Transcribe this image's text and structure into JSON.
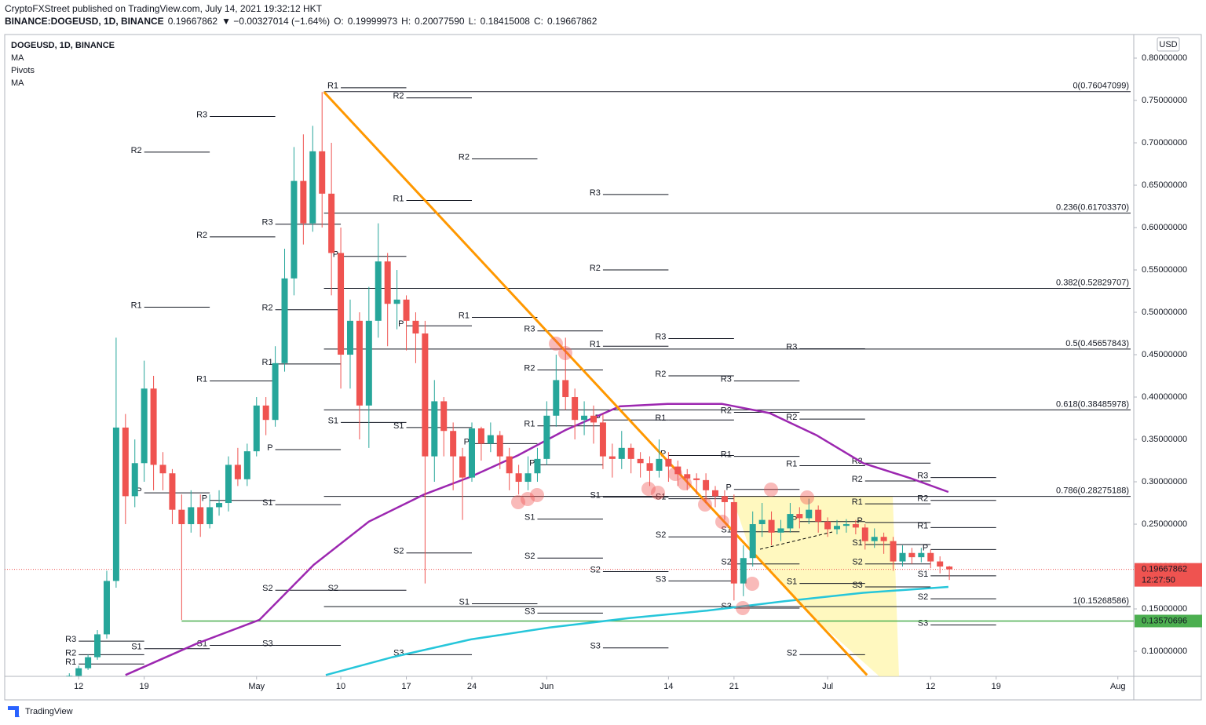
{
  "header": {
    "publisher": "CryptoFXStreet published on TradingView.com, July 14, 2021 19:32:12 HKT",
    "symbol": "BINANCE:DOGEUSD, 1D, BINANCE",
    "last": "0.19667862",
    "change": "▼ −0.00327014 (−1.64%)",
    "ohlc": [
      {
        "label": "O:",
        "value": "0.19999973"
      },
      {
        "label": "H:",
        "value": "0.20077590"
      },
      {
        "label": "L:",
        "value": "0.18415008"
      },
      {
        "label": "C:",
        "value": "0.19667862"
      }
    ]
  },
  "footer": "TradingView",
  "chart_data": {
    "type": "candlestick",
    "title": "DOGEUSD, 1D, BINANCE",
    "currency": "USD",
    "up_color": "#26a69a",
    "down_color": "#ef5350",
    "open": [
      0.068,
      0.071,
      0.08,
      0.093,
      0.12,
      0.183,
      0.364,
      0.283,
      0.322,
      0.41,
      0.32,
      0.31,
      0.267,
      0.25,
      0.27,
      0.25,
      0.27,
      0.275,
      0.32,
      0.303,
      0.336,
      0.39,
      0.373,
      0.44,
      0.54,
      0.655,
      0.605,
      0.69,
      0.64,
      0.57,
      0.45,
      0.49,
      0.39,
      0.49,
      0.56,
      0.51,
      0.515,
      0.49,
      0.475,
      0.33,
      0.395,
      0.36,
      0.33,
      0.305,
      0.363,
      0.345,
      0.355,
      0.33,
      0.31,
      0.3,
      0.31,
      0.327,
      0.378,
      0.42,
      0.4,
      0.373,
      0.378,
      0.37,
      0.33,
      0.327,
      0.34,
      0.327,
      0.322,
      0.313,
      0.327,
      0.318,
      0.309,
      0.304,
      0.302,
      0.29,
      0.283,
      0.276,
      0.18,
      0.21,
      0.25,
      0.255,
      0.24,
      0.245,
      0.262,
      0.257,
      0.267,
      0.253,
      0.244,
      0.248,
      0.25,
      0.246,
      0.23,
      0.235,
      0.23,
      0.206,
      0.216,
      0.211,
      0.216,
      0.206,
      0.19999973
    ],
    "high": [
      0.074,
      0.083,
      0.096,
      0.125,
      0.195,
      0.47,
      0.38,
      0.35,
      0.443,
      0.425,
      0.335,
      0.315,
      0.285,
      0.29,
      0.285,
      0.285,
      0.29,
      0.33,
      0.34,
      0.345,
      0.4,
      0.4,
      0.46,
      0.575,
      0.695,
      0.71,
      0.72,
      0.76,
      0.7,
      0.6,
      0.515,
      0.5,
      0.53,
      0.605,
      0.57,
      0.55,
      0.52,
      0.5,
      0.49,
      0.42,
      0.4,
      0.37,
      0.34,
      0.37,
      0.365,
      0.37,
      0.36,
      0.34,
      0.32,
      0.33,
      0.34,
      0.395,
      0.45,
      0.47,
      0.41,
      0.395,
      0.39,
      0.38,
      0.345,
      0.36,
      0.345,
      0.335,
      0.33,
      0.35,
      0.335,
      0.325,
      0.315,
      0.31,
      0.31,
      0.295,
      0.29,
      0.285,
      0.225,
      0.265,
      0.275,
      0.265,
      0.255,
      0.275,
      0.27,
      0.28,
      0.272,
      0.258,
      0.255,
      0.256,
      0.255,
      0.25,
      0.245,
      0.24,
      0.235,
      0.225,
      0.222,
      0.222,
      0.22,
      0.212,
      0.2007759
    ],
    "low": [
      0.066,
      0.069,
      0.078,
      0.09,
      0.115,
      0.175,
      0.25,
      0.27,
      0.3,
      0.29,
      0.29,
      0.25,
      0.137,
      0.24,
      0.235,
      0.245,
      0.26,
      0.265,
      0.295,
      0.295,
      0.33,
      0.355,
      0.365,
      0.43,
      0.52,
      0.58,
      0.595,
      0.6,
      0.52,
      0.41,
      0.41,
      0.35,
      0.34,
      0.47,
      0.46,
      0.48,
      0.455,
      0.44,
      0.18,
      0.3,
      0.33,
      0.29,
      0.255,
      0.3,
      0.325,
      0.335,
      0.315,
      0.29,
      0.285,
      0.29,
      0.3,
      0.32,
      0.365,
      0.385,
      0.35,
      0.355,
      0.345,
      0.315,
      0.305,
      0.315,
      0.31,
      0.305,
      0.295,
      0.305,
      0.3,
      0.295,
      0.29,
      0.285,
      0.275,
      0.27,
      0.255,
      0.16,
      0.165,
      0.2,
      0.235,
      0.225,
      0.23,
      0.24,
      0.245,
      0.25,
      0.24,
      0.235,
      0.238,
      0.24,
      0.238,
      0.22,
      0.222,
      0.215,
      0.195,
      0.2,
      0.203,
      0.205,
      0.198,
      0.192,
      0.18415008
    ],
    "close": [
      0.071,
      0.08,
      0.093,
      0.12,
      0.183,
      0.364,
      0.283,
      0.322,
      0.41,
      0.32,
      0.31,
      0.267,
      0.25,
      0.27,
      0.25,
      0.27,
      0.275,
      0.32,
      0.303,
      0.336,
      0.39,
      0.373,
      0.44,
      0.54,
      0.655,
      0.605,
      0.69,
      0.64,
      0.57,
      0.45,
      0.49,
      0.39,
      0.49,
      0.56,
      0.51,
      0.515,
      0.49,
      0.475,
      0.33,
      0.395,
      0.36,
      0.33,
      0.305,
      0.363,
      0.345,
      0.355,
      0.33,
      0.31,
      0.3,
      0.31,
      0.327,
      0.378,
      0.42,
      0.4,
      0.373,
      0.378,
      0.37,
      0.33,
      0.327,
      0.34,
      0.327,
      0.322,
      0.313,
      0.327,
      0.318,
      0.309,
      0.304,
      0.302,
      0.29,
      0.283,
      0.276,
      0.18,
      0.21,
      0.25,
      0.255,
      0.24,
      0.245,
      0.262,
      0.257,
      0.267,
      0.253,
      0.244,
      0.248,
      0.25,
      0.246,
      0.23,
      0.235,
      0.23,
      0.206,
      0.216,
      0.211,
      0.216,
      0.206,
      0.2,
      0.19667862
    ],
    "xlim": [
      -6.9,
      113.7
    ],
    "xticks": [
      {
        "value": 1,
        "label": "12"
      },
      {
        "value": 8,
        "label": "19"
      },
      {
        "value": 20,
        "label": "May"
      },
      {
        "value": 29,
        "label": "10"
      },
      {
        "value": 36,
        "label": "17"
      },
      {
        "value": 43,
        "label": "24"
      },
      {
        "value": 51,
        "label": "Jun"
      },
      {
        "value": 64,
        "label": "14"
      },
      {
        "value": 71,
        "label": "21"
      },
      {
        "value": 81,
        "label": "Jul"
      },
      {
        "value": 92,
        "label": "12"
      },
      {
        "value": 99,
        "label": "19"
      },
      {
        "value": 112,
        "label": "Aug"
      }
    ],
    "ylim": [
      0.0704,
      0.8278
    ],
    "yticks": [
      {
        "value": 0.1,
        "label": "0.10000000"
      },
      {
        "value": 0.15,
        "label": "0.15000000"
      },
      {
        "value": 0.2,
        "label": "0.20000000"
      },
      {
        "value": 0.25,
        "label": "0.25000000"
      },
      {
        "value": 0.3,
        "label": "0.30000000"
      },
      {
        "value": 0.35,
        "label": "0.35000000"
      },
      {
        "value": 0.4,
        "label": "0.40000000"
      },
      {
        "value": 0.45,
        "label": "0.45000000"
      },
      {
        "value": 0.5,
        "label": "0.50000000"
      },
      {
        "value": 0.55,
        "label": "0.55000000"
      },
      {
        "value": 0.6,
        "label": "0.60000000"
      },
      {
        "value": 0.65,
        "label": "0.65000000"
      },
      {
        "value": 0.7,
        "label": "0.70000000"
      },
      {
        "value": 0.75,
        "label": "0.75000000"
      },
      {
        "value": 0.8,
        "label": "0.80000000"
      }
    ],
    "series": [
      {
        "name": "MA",
        "color": "#9c27b0",
        "x": [
          6,
          13.6,
          20.3,
          26.1,
          32,
          37.9,
          42.9,
          47.9,
          53,
          58.8,
          63.9,
          69.7,
          74.8,
          79.8,
          84.8,
          89.9,
          93.9
        ],
        "values": [
          0.072,
          0.109,
          0.137,
          0.202,
          0.253,
          0.285,
          0.306,
          0.331,
          0.361,
          0.389,
          0.392,
          0.392,
          0.381,
          0.355,
          0.322,
          0.304,
          0.288
        ]
      },
      {
        "name": "MA",
        "color": "#26c6da",
        "x": [
          27.4,
          34.5,
          42.9,
          51.3,
          59.7,
          68.1,
          76.4,
          84.8,
          93.9
        ],
        "values": [
          0.072,
          0.093,
          0.114,
          0.128,
          0.139,
          0.148,
          0.159,
          0.169,
          0.176
        ]
      }
    ],
    "trendline": {
      "color": "#ff9800",
      "x": [
        27.2,
        85.2
      ],
      "values": [
        0.76,
        0.072
      ]
    },
    "pivots": {
      "name": "Pivots",
      "names": [
        "P",
        "R1",
        "R2",
        "R3",
        "S1",
        "S2",
        "S3"
      ],
      "periods": [
        {
          "start": 1,
          "levels": [
            null,
            0.085,
            0.096,
            0.112,
            null,
            null,
            null
          ]
        },
        {
          "start": 8,
          "levels": [
            0.287,
            0.506,
            0.689,
            null,
            0.103,
            null,
            null
          ]
        },
        {
          "start": 15,
          "levels": [
            0.278,
            0.419,
            0.589,
            0.731,
            0.107,
            null,
            null
          ]
        },
        {
          "start": 22,
          "levels": [
            0.338,
            0.439,
            0.503,
            0.604,
            0.273,
            0.172,
            0.107
          ]
        },
        {
          "start": 29,
          "levels": [
            0.566,
            0.765,
            null,
            null,
            0.37,
            0.172,
            null
          ]
        },
        {
          "start": 36,
          "levels": [
            0.484,
            0.632,
            0.753,
            null,
            0.364,
            0.216,
            0.096
          ]
        },
        {
          "start": 43,
          "levels": [
            0.345,
            0.494,
            0.681,
            null,
            0.156,
            null,
            null
          ]
        },
        {
          "start": 50,
          "levels": [
            0.32,
            0.366,
            0.432,
            0.478,
            0.256,
            0.21,
            0.145
          ]
        },
        {
          "start": 57,
          "levels": [
            0.373,
            0.46,
            0.55,
            0.639,
            0.282,
            0.194,
            0.104
          ]
        },
        {
          "start": 64,
          "levels": [
            0.331,
            0.373,
            0.425,
            0.469,
            0.28,
            0.235,
            0.183
          ]
        },
        {
          "start": 71,
          "levels": [
            0.291,
            0.33,
            0.382,
            0.419,
            0.241,
            0.203,
            0.151
          ]
        },
        {
          "start": 78,
          "levels": [
            0.253,
            0.319,
            0.374,
            0.457,
            0.18,
            0.096,
            null
          ]
        },
        {
          "start": 85,
          "levels": [
            0.252,
            0.274,
            0.301,
            0.322,
            0.226,
            0.203,
            0.176
          ]
        },
        {
          "start": 92,
          "levels": [
            0.22,
            0.246,
            0.278,
            0.305,
            0.189,
            0.162,
            0.131
          ]
        }
      ]
    },
    "fib": {
      "x_start": 27.2,
      "levels": [
        {
          "value": 0.76047099,
          "label": "0(0.76047099)"
        },
        {
          "value": 0.6170337,
          "label": "0.236(0.61703370)"
        },
        {
          "value": 0.52829707,
          "label": "0.382(0.52829707)"
        },
        {
          "value": 0.45657843,
          "label": "0.5(0.45657843)"
        },
        {
          "value": 0.38485978,
          "label": "0.618(0.38485978)"
        },
        {
          "value": 0.28275188,
          "label": "0.786(0.28275188)"
        },
        {
          "value": 0.15268586,
          "label": "1(0.15268586)"
        }
      ]
    },
    "support": {
      "x_start": 12,
      "value": 0.13570696,
      "label": "0.13570696",
      "color": "#4caf50"
    },
    "last_price": {
      "value": 0.19667862,
      "label": "0.19667862",
      "countdown": "12:27:50",
      "color": "#ef5350"
    }
  }
}
